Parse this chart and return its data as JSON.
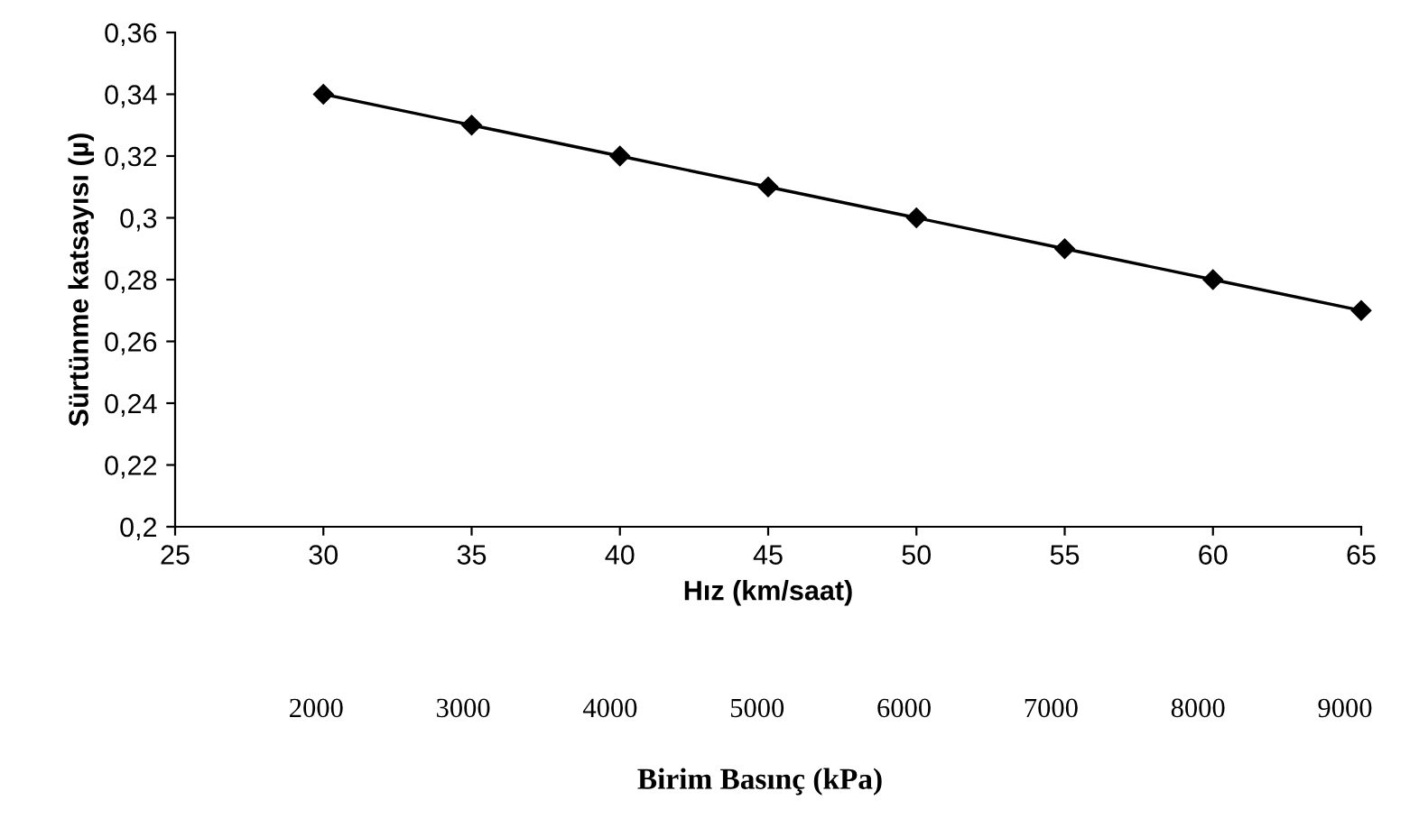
{
  "chart_data": {
    "type": "line",
    "xlabel": "Hız (km/saat)",
    "ylabel": "Sürtünme katsayısı (µ)",
    "x2label": "Birim Basınç (kPa)",
    "x": [
      30,
      35,
      40,
      45,
      50,
      55,
      60,
      65
    ],
    "series": [
      {
        "color": "#000000",
        "values": [
          0.34,
          0.33,
          0.32,
          0.31,
          0.3,
          0.29,
          0.28,
          0.27
        ]
      }
    ],
    "xlim": [
      25,
      65
    ],
    "xticks": [
      25,
      30,
      35,
      40,
      45,
      50,
      55,
      60,
      65
    ],
    "ylim": [
      0.2,
      0.36
    ],
    "yticks": [
      {
        "value": 0.2,
        "label": "0,2"
      },
      {
        "value": 0.22,
        "label": "0,22"
      },
      {
        "value": 0.24,
        "label": "0,24"
      },
      {
        "value": 0.26,
        "label": "0,26"
      },
      {
        "value": 0.28,
        "label": "0,28"
      },
      {
        "value": 0.3,
        "label": "0,3"
      },
      {
        "value": 0.32,
        "label": "0,32"
      },
      {
        "value": 0.34,
        "label": "0,34"
      },
      {
        "value": 0.36,
        "label": "0,36"
      }
    ],
    "x2lim": [
      1040,
      9000
    ],
    "x2ticks": [
      2000,
      3000,
      4000,
      5000,
      6000,
      7000,
      8000,
      9000
    ],
    "marker": "diamond",
    "line_style": "solid",
    "grid": false
  }
}
